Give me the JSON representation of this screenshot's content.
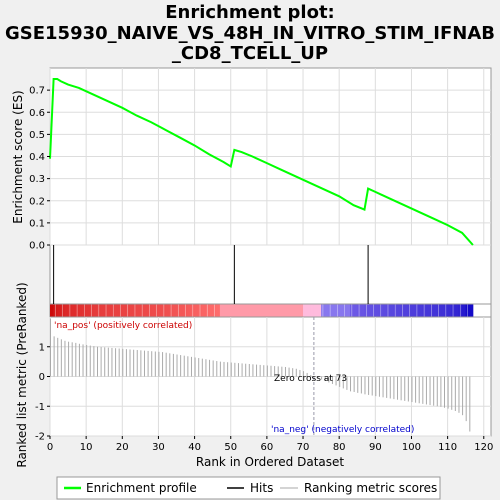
{
  "chart_data": {
    "type": "line",
    "title_lines": [
      "Enrichment plot:",
      "GSE15930_NAIVE_VS_48H_IN_VITRO_STIM_IFNAB",
      "_CD8_TCELL_UP"
    ],
    "xlabel": "Rank in Ordered Dataset",
    "ylabel_top": "Enrichment score (ES)",
    "ylabel_bottom": "Ranked list metric (PreRanked)",
    "xlim": [
      0,
      122
    ],
    "ylim_es": [
      0,
      0.8
    ],
    "ylim_metric": [
      -2,
      2
    ],
    "x_ticks": [
      "0",
      "10",
      "20",
      "30",
      "40",
      "50",
      "60",
      "70",
      "80",
      "90",
      "100",
      "110",
      "120"
    ],
    "x_tick_values": [
      0,
      10,
      20,
      30,
      40,
      50,
      60,
      70,
      80,
      90,
      100,
      110,
      120
    ],
    "es_ticks": [
      "0.0",
      "0.1",
      "0.2",
      "0.3",
      "0.4",
      "0.5",
      "0.6",
      "0.7"
    ],
    "es_tick_values": [
      0,
      0.1,
      0.2,
      0.3,
      0.4,
      0.5,
      0.6,
      0.7
    ],
    "metric_ticks": [
      "1",
      "0",
      "-1",
      "-2"
    ],
    "metric_tick_values": [
      1,
      0,
      -1,
      -2
    ],
    "grid": true,
    "enrichment_profile": {
      "name": "Enrichment profile",
      "color": "#00ff00",
      "x": [
        0,
        1,
        2,
        3,
        5,
        8,
        12,
        16,
        20,
        24,
        28,
        32,
        36,
        40,
        44,
        48,
        50,
        51,
        53,
        56,
        60,
        64,
        68,
        72,
        76,
        80,
        84,
        87,
        88,
        90,
        94,
        98,
        102,
        106,
        110,
        114,
        117
      ],
      "y": [
        0.39,
        0.75,
        0.75,
        0.74,
        0.725,
        0.71,
        0.68,
        0.65,
        0.62,
        0.585,
        0.555,
        0.52,
        0.485,
        0.45,
        0.41,
        0.375,
        0.355,
        0.43,
        0.42,
        0.4,
        0.37,
        0.34,
        0.31,
        0.28,
        0.25,
        0.22,
        0.18,
        0.16,
        0.255,
        0.24,
        0.21,
        0.18,
        0.15,
        0.12,
        0.09,
        0.055,
        0.0
      ]
    },
    "hits": {
      "name": "Hits",
      "color": "#000000",
      "x": [
        1,
        51,
        88
      ]
    },
    "ranking_metric": {
      "name": "Ranking metric scores",
      "color": "#aaaaaa",
      "zero_cross": 73,
      "values": [
        1.95,
        1.35,
        1.3,
        1.25,
        1.2,
        1.17,
        1.15,
        1.13,
        1.1,
        1.08,
        1.06,
        1.04,
        1.02,
        1.0,
        0.99,
        0.98,
        0.97,
        0.96,
        0.95,
        0.94,
        0.93,
        0.92,
        0.91,
        0.9,
        0.89,
        0.88,
        0.87,
        0.86,
        0.85,
        0.84,
        0.83,
        0.82,
        0.8,
        0.78,
        0.76,
        0.74,
        0.72,
        0.7,
        0.68,
        0.66,
        0.64,
        0.62,
        0.6,
        0.58,
        0.56,
        0.54,
        0.52,
        0.5,
        0.49,
        0.48,
        0.47,
        0.46,
        0.45,
        0.44,
        0.43,
        0.42,
        0.41,
        0.4,
        0.39,
        0.38,
        0.37,
        0.36,
        0.35,
        0.34,
        0.33,
        0.32,
        0.3,
        0.28,
        0.26,
        0.22,
        0.18,
        0.12,
        0.05,
        0.0,
        -0.05,
        -0.1,
        -0.15,
        -0.2,
        -0.25,
        -0.3,
        -0.35,
        -0.4,
        -0.45,
        -0.5,
        -0.52,
        -0.55,
        -0.57,
        -0.6,
        -0.62,
        -0.64,
        -0.66,
        -0.68,
        -0.7,
        -0.72,
        -0.74,
        -0.76,
        -0.78,
        -0.8,
        -0.82,
        -0.84,
        -0.86,
        -0.88,
        -0.9,
        -0.92,
        -0.94,
        -0.96,
        -0.98,
        -1.0,
        -1.02,
        -1.05,
        -1.08,
        -1.12,
        -1.16,
        -1.22,
        -1.3,
        -1.5,
        -1.85
      ]
    },
    "annotations": {
      "na_pos": "'na_pos' (positively correlated)",
      "na_neg": "'na_neg' (negatively correlated)",
      "zero_cross": "Zero cross at 73"
    },
    "legend_placement": "bottom"
  },
  "colors": {
    "pos_color": "#cc0000",
    "neg_color": "#0000cc",
    "zero_line": "#9999aa",
    "grid": "#dddddd"
  }
}
